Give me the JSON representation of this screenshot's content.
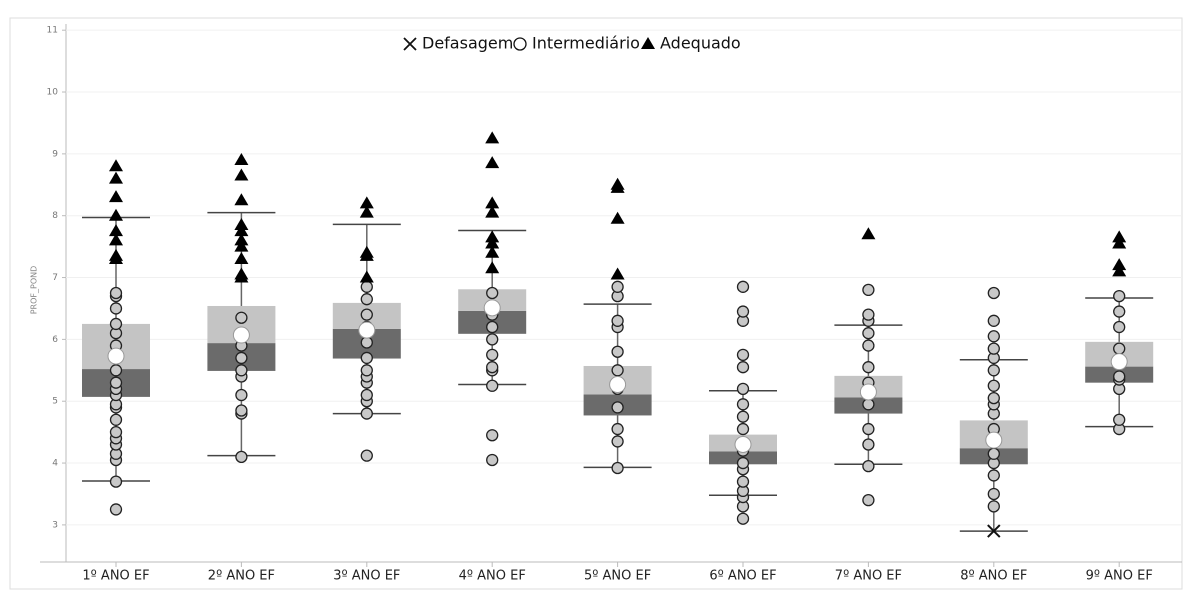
{
  "chart_data": {
    "type": "box",
    "y_label": "PROF_POND",
    "categories": [
      "1º ANO EF",
      "2º ANO EF",
      "3º ANO EF",
      "4º ANO EF",
      "5º ANO EF",
      "6º ANO EF",
      "7º ANO EF",
      "8º ANO EF",
      "9º ANO EF"
    ],
    "ylim": [
      2.4,
      11.1
    ],
    "yticks": [
      3,
      4,
      5,
      6,
      7,
      8,
      9,
      10,
      11
    ],
    "grid": true,
    "box_colors": [
      "#6b6b6b",
      "#c4c4c4"
    ],
    "boxes": {
      "whisker_low": [
        3.71,
        4.12,
        4.8,
        5.27,
        3.93,
        3.48,
        3.98,
        2.9,
        4.59
      ],
      "q1": [
        5.07,
        5.49,
        5.69,
        6.09,
        4.77,
        3.98,
        4.8,
        3.98,
        5.3
      ],
      "median": [
        5.52,
        5.94,
        6.17,
        6.46,
        5.11,
        4.19,
        5.06,
        4.24,
        5.56
      ],
      "q3": [
        6.25,
        6.54,
        6.59,
        6.81,
        5.57,
        4.46,
        5.41,
        4.69,
        5.96
      ],
      "whisker_high": [
        7.97,
        8.05,
        7.86,
        7.76,
        6.57,
        5.17,
        6.23,
        5.67,
        6.67
      ],
      "mean": [
        5.73,
        6.07,
        6.15,
        6.51,
        5.27,
        4.3,
        5.15,
        4.37,
        5.64
      ]
    },
    "series": [
      {
        "name": "Defasagem",
        "marker": "x",
        "color": "#111",
        "values": [
          [],
          [],
          [],
          [],
          [],
          [],
          [],
          [
            2.9
          ],
          []
        ]
      },
      {
        "name": "Intermediário",
        "marker": "circle",
        "color": "#c8c8c8",
        "values": [
          [
            3.25,
            3.7,
            4.05,
            4.15,
            4.3,
            4.4,
            4.5,
            4.7,
            4.9,
            4.95,
            5.1,
            5.2,
            5.3,
            5.5,
            5.7,
            5.9,
            6.1,
            6.25,
            6.5,
            6.7,
            6.75
          ],
          [
            4.1,
            4.8,
            4.85,
            5.1,
            5.4,
            5.5,
            5.7,
            5.9,
            6.1,
            6.35
          ],
          [
            4.12,
            4.8,
            5.0,
            5.1,
            5.3,
            5.4,
            5.5,
            5.7,
            5.95,
            6.2,
            6.4,
            6.65,
            6.85
          ],
          [
            4.05,
            4.45,
            5.25,
            5.5,
            5.55,
            5.75,
            6.0,
            6.2,
            6.4,
            6.75
          ],
          [
            3.92,
            4.35,
            4.55,
            4.9,
            5.2,
            5.5,
            5.8,
            6.2,
            6.3,
            6.7,
            6.85
          ],
          [
            3.1,
            3.3,
            3.45,
            3.55,
            3.7,
            3.9,
            4.0,
            4.2,
            4.3,
            4.55,
            4.75,
            4.95,
            5.2,
            5.55,
            5.75,
            6.3,
            6.45,
            6.85
          ],
          [
            3.4,
            3.95,
            4.3,
            4.55,
            4.95,
            5.3,
            5.55,
            5.9,
            6.1,
            6.3,
            6.4,
            6.8
          ],
          [
            3.3,
            3.5,
            3.8,
            4.0,
            4.15,
            4.35,
            4.55,
            4.8,
            4.95,
            5.05,
            5.25,
            5.5,
            5.7,
            5.85,
            6.05,
            6.3,
            6.75
          ],
          [
            4.55,
            4.7,
            5.2,
            5.35,
            5.4,
            5.65,
            5.85,
            6.2,
            6.45,
            6.7
          ]
        ]
      },
      {
        "name": "Adequado",
        "marker": "triangle",
        "color": "#000",
        "values": [
          [
            7.3,
            7.35,
            7.6,
            7.75,
            8.0,
            8.3,
            8.6,
            8.8
          ],
          [
            7.0,
            7.05,
            7.3,
            7.5,
            7.6,
            7.75,
            7.85,
            8.25,
            8.65,
            8.9
          ],
          [
            7.0,
            7.35,
            7.4,
            8.05,
            8.2
          ],
          [
            7.15,
            7.4,
            7.55,
            7.65,
            8.05,
            8.2,
            8.85,
            9.25
          ],
          [
            7.05,
            7.95,
            8.45,
            8.5
          ],
          [],
          [
            7.7
          ],
          [],
          [
            7.1,
            7.2,
            7.55,
            7.65
          ]
        ]
      }
    ]
  }
}
